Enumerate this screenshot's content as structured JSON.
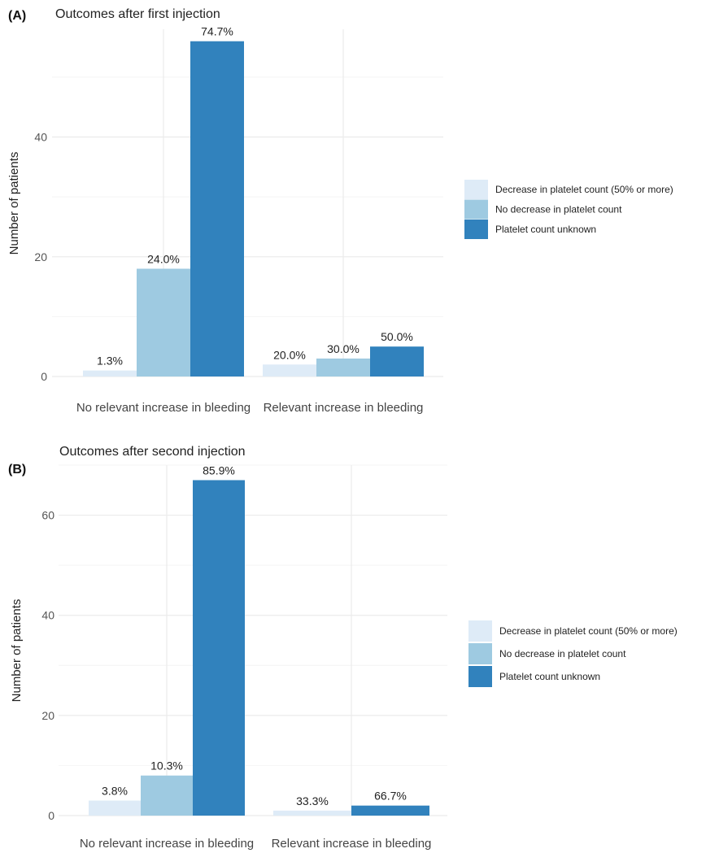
{
  "chart_data": [
    {
      "type": "bar",
      "panel_label": "(A)",
      "title": "Outcomes after first injection",
      "xlabel": "",
      "ylabel": "Number of patients",
      "categories": [
        "No relevant increase in bleeding",
        "Relevant increase in bleeding"
      ],
      "ylim": [
        0,
        58
      ],
      "yticks": [
        0,
        20,
        40
      ],
      "series": [
        {
          "name": "Decrease in platelet count (50% or more)",
          "color": "#deebf7",
          "values": [
            1,
            2
          ],
          "labels": [
            "1.3%",
            "20.0%"
          ]
        },
        {
          "name": "No decrease in platelet count",
          "color": "#9ecae1",
          "values": [
            18,
            3
          ],
          "labels": [
            "24.0%",
            "30.0%"
          ]
        },
        {
          "name": "Platelet count unknown",
          "color": "#3182bd",
          "values": [
            56,
            5
          ],
          "labels": [
            "74.7%",
            "50.0%"
          ]
        }
      ],
      "legend": "right",
      "grid": true
    },
    {
      "type": "bar",
      "panel_label": "(B)",
      "title": "Outcomes after second injection",
      "xlabel": "",
      "ylabel": "Number of patients",
      "categories": [
        "No relevant increase in bleeding",
        "Relevant increase in bleeding"
      ],
      "ylim": [
        0,
        70
      ],
      "yticks": [
        0,
        20,
        40,
        60
      ],
      "series": [
        {
          "name": "Decrease in platelet count (50% or more)",
          "color": "#deebf7",
          "values": [
            3,
            1
          ],
          "labels": [
            "3.8%",
            "33.3%"
          ]
        },
        {
          "name": "No decrease in platelet count",
          "color": "#9ecae1",
          "values": [
            8,
            null
          ],
          "labels": [
            "10.3%",
            null
          ]
        },
        {
          "name": "Platelet count unknown",
          "color": "#3182bd",
          "values": [
            67,
            2
          ],
          "labels": [
            "85.9%",
            "66.7%"
          ]
        }
      ],
      "legend": "right",
      "grid": true
    }
  ]
}
